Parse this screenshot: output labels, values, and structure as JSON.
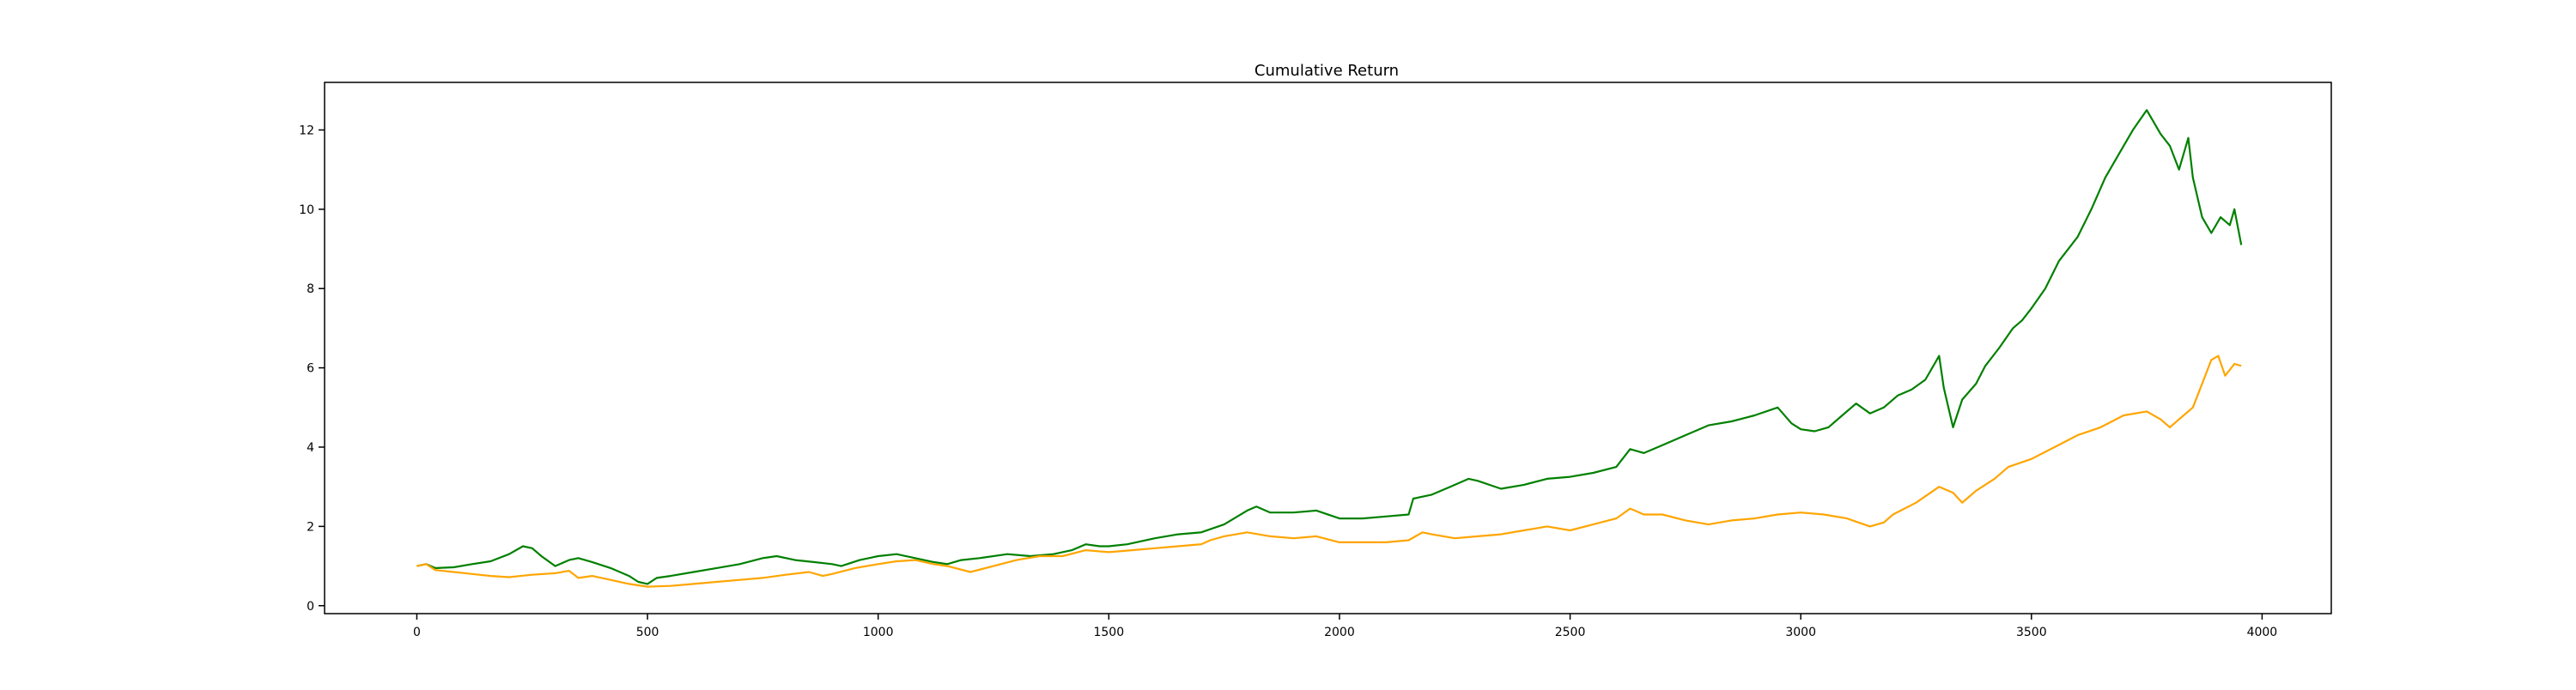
{
  "chart_data": {
    "type": "line",
    "title": "Cumulative Return",
    "xlabel": "",
    "ylabel": "",
    "xlim": [
      -200,
      4150
    ],
    "ylim": [
      -0.2,
      13.2
    ],
    "x_ticks": [
      0,
      500,
      1000,
      1500,
      2000,
      2500,
      3000,
      3500,
      4000
    ],
    "x_tick_labels": [
      "0",
      "500",
      "1000",
      "1500",
      "2000",
      "2500",
      "3000",
      "3500",
      "4000"
    ],
    "y_ticks": [
      0,
      2,
      4,
      6,
      8,
      10,
      12
    ],
    "y_tick_labels": [
      "0",
      "2",
      "4",
      "6",
      "8",
      "10",
      "12"
    ],
    "grid": false,
    "legend": false,
    "series": [
      {
        "color": "#008000",
        "points": [
          [
            0,
            1.0
          ],
          [
            20,
            1.05
          ],
          [
            40,
            0.95
          ],
          [
            80,
            0.97
          ],
          [
            120,
            1.05
          ],
          [
            160,
            1.12
          ],
          [
            200,
            1.3
          ],
          [
            230,
            1.5
          ],
          [
            250,
            1.45
          ],
          [
            270,
            1.25
          ],
          [
            300,
            1.0
          ],
          [
            330,
            1.15
          ],
          [
            350,
            1.2
          ],
          [
            380,
            1.1
          ],
          [
            420,
            0.95
          ],
          [
            460,
            0.75
          ],
          [
            480,
            0.6
          ],
          [
            500,
            0.55
          ],
          [
            520,
            0.7
          ],
          [
            550,
            0.75
          ],
          [
            600,
            0.85
          ],
          [
            650,
            0.95
          ],
          [
            700,
            1.05
          ],
          [
            750,
            1.2
          ],
          [
            780,
            1.25
          ],
          [
            820,
            1.15
          ],
          [
            860,
            1.1
          ],
          [
            900,
            1.05
          ],
          [
            920,
            1.0
          ],
          [
            960,
            1.15
          ],
          [
            1000,
            1.25
          ],
          [
            1040,
            1.3
          ],
          [
            1080,
            1.2
          ],
          [
            1120,
            1.1
          ],
          [
            1150,
            1.05
          ],
          [
            1180,
            1.15
          ],
          [
            1220,
            1.2
          ],
          [
            1280,
            1.3
          ],
          [
            1330,
            1.25
          ],
          [
            1380,
            1.3
          ],
          [
            1420,
            1.4
          ],
          [
            1450,
            1.55
          ],
          [
            1480,
            1.5
          ],
          [
            1500,
            1.5
          ],
          [
            1540,
            1.55
          ],
          [
            1600,
            1.7
          ],
          [
            1650,
            1.8
          ],
          [
            1700,
            1.85
          ],
          [
            1750,
            2.05
          ],
          [
            1800,
            2.4
          ],
          [
            1820,
            2.5
          ],
          [
            1850,
            2.35
          ],
          [
            1900,
            2.35
          ],
          [
            1950,
            2.4
          ],
          [
            2000,
            2.2
          ],
          [
            2050,
            2.2
          ],
          [
            2100,
            2.25
          ],
          [
            2150,
            2.3
          ],
          [
            2160,
            2.7
          ],
          [
            2200,
            2.8
          ],
          [
            2240,
            3.0
          ],
          [
            2280,
            3.2
          ],
          [
            2300,
            3.15
          ],
          [
            2350,
            2.95
          ],
          [
            2400,
            3.05
          ],
          [
            2450,
            3.2
          ],
          [
            2500,
            3.25
          ],
          [
            2550,
            3.35
          ],
          [
            2600,
            3.5
          ],
          [
            2630,
            3.95
          ],
          [
            2660,
            3.85
          ],
          [
            2700,
            4.05
          ],
          [
            2750,
            4.3
          ],
          [
            2800,
            4.55
          ],
          [
            2850,
            4.65
          ],
          [
            2900,
            4.8
          ],
          [
            2950,
            5.0
          ],
          [
            2980,
            4.6
          ],
          [
            3000,
            4.45
          ],
          [
            3030,
            4.4
          ],
          [
            3060,
            4.5
          ],
          [
            3090,
            4.8
          ],
          [
            3120,
            5.1
          ],
          [
            3150,
            4.85
          ],
          [
            3180,
            5.0
          ],
          [
            3210,
            5.3
          ],
          [
            3240,
            5.45
          ],
          [
            3270,
            5.7
          ],
          [
            3300,
            6.3
          ],
          [
            3310,
            5.5
          ],
          [
            3330,
            4.5
          ],
          [
            3350,
            5.2
          ],
          [
            3380,
            5.6
          ],
          [
            3400,
            6.05
          ],
          [
            3430,
            6.5
          ],
          [
            3460,
            7.0
          ],
          [
            3480,
            7.2
          ],
          [
            3500,
            7.5
          ],
          [
            3530,
            8.0
          ],
          [
            3560,
            8.7
          ],
          [
            3600,
            9.3
          ],
          [
            3630,
            10.0
          ],
          [
            3660,
            10.8
          ],
          [
            3690,
            11.4
          ],
          [
            3720,
            12.0
          ],
          [
            3750,
            12.5
          ],
          [
            3780,
            11.9
          ],
          [
            3800,
            11.6
          ],
          [
            3820,
            11.0
          ],
          [
            3840,
            11.8
          ],
          [
            3850,
            10.8
          ],
          [
            3870,
            9.8
          ],
          [
            3890,
            9.4
          ],
          [
            3910,
            9.8
          ],
          [
            3930,
            9.6
          ],
          [
            3940,
            10.0
          ],
          [
            3955,
            9.1
          ]
        ]
      },
      {
        "color": "#FFA500",
        "points": [
          [
            0,
            1.0
          ],
          [
            20,
            1.05
          ],
          [
            40,
            0.9
          ],
          [
            80,
            0.85
          ],
          [
            120,
            0.8
          ],
          [
            160,
            0.75
          ],
          [
            200,
            0.72
          ],
          [
            250,
            0.78
          ],
          [
            300,
            0.82
          ],
          [
            330,
            0.88
          ],
          [
            350,
            0.7
          ],
          [
            380,
            0.75
          ],
          [
            420,
            0.65
          ],
          [
            460,
            0.55
          ],
          [
            500,
            0.48
          ],
          [
            550,
            0.5
          ],
          [
            600,
            0.55
          ],
          [
            650,
            0.6
          ],
          [
            700,
            0.65
          ],
          [
            750,
            0.7
          ],
          [
            800,
            0.78
          ],
          [
            850,
            0.85
          ],
          [
            880,
            0.75
          ],
          [
            900,
            0.8
          ],
          [
            950,
            0.95
          ],
          [
            1000,
            1.05
          ],
          [
            1040,
            1.12
          ],
          [
            1080,
            1.15
          ],
          [
            1120,
            1.05
          ],
          [
            1150,
            1.0
          ],
          [
            1200,
            0.85
          ],
          [
            1250,
            1.0
          ],
          [
            1300,
            1.15
          ],
          [
            1350,
            1.25
          ],
          [
            1400,
            1.25
          ],
          [
            1450,
            1.4
          ],
          [
            1500,
            1.35
          ],
          [
            1550,
            1.4
          ],
          [
            1600,
            1.45
          ],
          [
            1650,
            1.5
          ],
          [
            1700,
            1.55
          ],
          [
            1720,
            1.65
          ],
          [
            1750,
            1.75
          ],
          [
            1800,
            1.85
          ],
          [
            1850,
            1.75
          ],
          [
            1900,
            1.7
          ],
          [
            1950,
            1.75
          ],
          [
            2000,
            1.6
          ],
          [
            2050,
            1.6
          ],
          [
            2100,
            1.6
          ],
          [
            2150,
            1.65
          ],
          [
            2180,
            1.85
          ],
          [
            2200,
            1.8
          ],
          [
            2250,
            1.7
          ],
          [
            2300,
            1.75
          ],
          [
            2350,
            1.8
          ],
          [
            2400,
            1.9
          ],
          [
            2450,
            2.0
          ],
          [
            2500,
            1.9
          ],
          [
            2550,
            2.05
          ],
          [
            2600,
            2.2
          ],
          [
            2630,
            2.45
          ],
          [
            2660,
            2.3
          ],
          [
            2700,
            2.3
          ],
          [
            2750,
            2.15
          ],
          [
            2800,
            2.05
          ],
          [
            2850,
            2.15
          ],
          [
            2900,
            2.2
          ],
          [
            2950,
            2.3
          ],
          [
            3000,
            2.35
          ],
          [
            3050,
            2.3
          ],
          [
            3100,
            2.2
          ],
          [
            3150,
            2.0
          ],
          [
            3180,
            2.1
          ],
          [
            3200,
            2.3
          ],
          [
            3250,
            2.6
          ],
          [
            3300,
            3.0
          ],
          [
            3330,
            2.85
          ],
          [
            3350,
            2.6
          ],
          [
            3380,
            2.9
          ],
          [
            3420,
            3.2
          ],
          [
            3450,
            3.5
          ],
          [
            3500,
            3.7
          ],
          [
            3550,
            4.0
          ],
          [
            3600,
            4.3
          ],
          [
            3650,
            4.5
          ],
          [
            3700,
            4.8
          ],
          [
            3750,
            4.9
          ],
          [
            3780,
            4.7
          ],
          [
            3800,
            4.5
          ],
          [
            3820,
            4.7
          ],
          [
            3850,
            5.0
          ],
          [
            3870,
            5.6
          ],
          [
            3890,
            6.2
          ],
          [
            3905,
            6.3
          ],
          [
            3920,
            5.8
          ],
          [
            3940,
            6.1
          ],
          [
            3955,
            6.05
          ]
        ]
      }
    ]
  }
}
